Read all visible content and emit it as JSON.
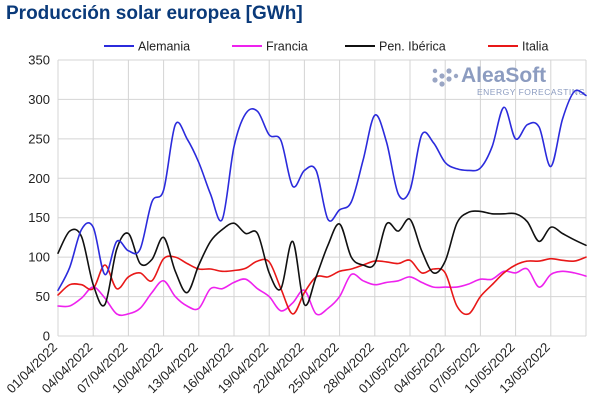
{
  "chart_data": {
    "type": "line",
    "title": "Producción solar europea [GWh]",
    "xlabel": "",
    "ylabel": "",
    "ylim": [
      0,
      350
    ],
    "yticks": [
      0,
      50,
      100,
      150,
      200,
      250,
      300,
      350
    ],
    "grid": true,
    "legend_position": "top",
    "x_start": "2022-04-01",
    "x": [
      "01/04/2022",
      "02/04/2022",
      "03/04/2022",
      "04/04/2022",
      "05/04/2022",
      "06/04/2022",
      "07/04/2022",
      "08/04/2022",
      "09/04/2022",
      "10/04/2022",
      "11/04/2022",
      "12/04/2022",
      "13/04/2022",
      "14/04/2022",
      "15/04/2022",
      "16/04/2022",
      "17/04/2022",
      "18/04/2022",
      "19/04/2022",
      "20/04/2022",
      "21/04/2022",
      "22/04/2022",
      "23/04/2022",
      "24/04/2022",
      "25/04/2022",
      "26/04/2022",
      "27/04/2022",
      "28/04/2022",
      "29/04/2022",
      "30/04/2022",
      "01/05/2022",
      "02/05/2022",
      "03/05/2022",
      "04/05/2022",
      "05/05/2022",
      "06/05/2022",
      "07/05/2022",
      "08/05/2022",
      "09/05/2022",
      "10/05/2022",
      "11/05/2022",
      "12/05/2022",
      "13/05/2022",
      "14/05/2022",
      "15/05/2022",
      "16/05/2022"
    ],
    "xtick_labels": [
      "01/04/2022",
      "04/04/2022",
      "07/04/2022",
      "10/04/2022",
      "13/04/2022",
      "16/04/2022",
      "19/04/2022",
      "22/04/2022",
      "25/04/2022",
      "28/04/2022",
      "01/05/2022",
      "04/05/2022",
      "07/05/2022",
      "10/05/2022",
      "13/05/2022"
    ],
    "series": [
      {
        "name": "Alemania",
        "color": "#2b2bdc",
        "values": [
          58,
          87,
          135,
          138,
          78,
          120,
          108,
          110,
          170,
          185,
          268,
          250,
          220,
          180,
          148,
          240,
          282,
          285,
          255,
          248,
          190,
          210,
          210,
          148,
          160,
          170,
          223,
          280,
          246,
          180,
          185,
          255,
          245,
          220,
          212,
          210,
          213,
          240,
          290,
          250,
          268,
          265,
          215,
          275,
          310,
          305
        ]
      },
      {
        "name": "Francia",
        "color": "#ee22ee",
        "values": [
          38,
          38,
          48,
          62,
          48,
          28,
          28,
          35,
          55,
          70,
          50,
          38,
          35,
          60,
          60,
          68,
          72,
          60,
          50,
          32,
          42,
          58,
          28,
          35,
          50,
          78,
          70,
          65,
          68,
          70,
          75,
          68,
          62,
          62,
          62,
          66,
          72,
          72,
          82,
          80,
          85,
          62,
          78,
          82,
          80,
          76
        ]
      },
      {
        "name": "Pen. Ibérica",
        "color": "#111111",
        "values": [
          105,
          133,
          126,
          65,
          40,
          110,
          130,
          92,
          97,
          125,
          82,
          55,
          90,
          120,
          135,
          143,
          130,
          130,
          80,
          60,
          120,
          40,
          75,
          115,
          142,
          100,
          90,
          92,
          142,
          133,
          148,
          108,
          80,
          95,
          143,
          157,
          158,
          155,
          155,
          155,
          145,
          120,
          138,
          130,
          122,
          115
        ]
      },
      {
        "name": "Italia",
        "color": "#e81818",
        "values": [
          52,
          65,
          65,
          60,
          90,
          60,
          75,
          80,
          70,
          98,
          100,
          92,
          85,
          85,
          82,
          83,
          86,
          95,
          94,
          60,
          28,
          55,
          75,
          75,
          82,
          85,
          90,
          95,
          94,
          92,
          96,
          80,
          85,
          80,
          38,
          28,
          50,
          65,
          80,
          90,
          95,
          95,
          98,
          96,
          95,
          100
        ]
      }
    ]
  },
  "watermark": {
    "brand": "AleaSoft",
    "tagline": "ENERGY FORECASTING"
  }
}
